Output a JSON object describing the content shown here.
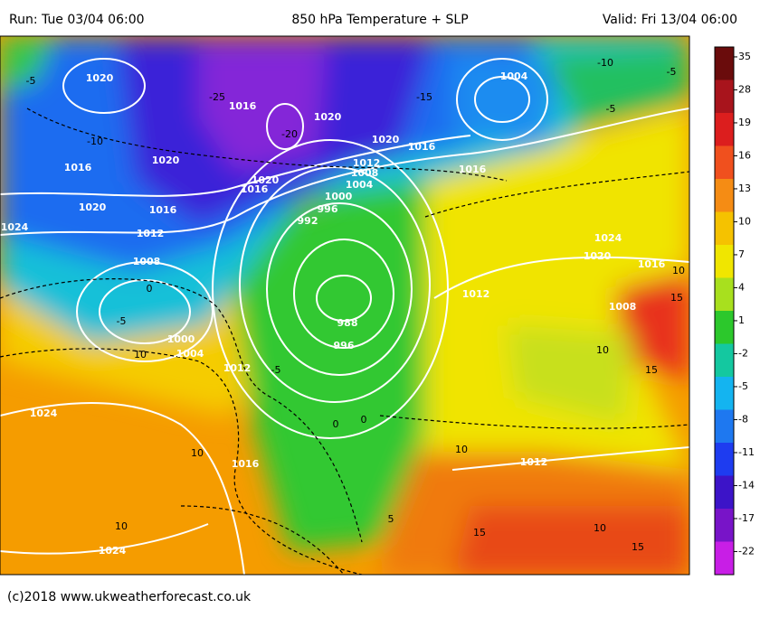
{
  "header": {
    "run": "Run: Tue 03/04 06:00",
    "title": "850 hPa Temperature + SLP",
    "valid": "Valid: Fri 13/04 06:00"
  },
  "footer": "(c)2018  www.ukweatherforecast.co.uk",
  "colorbar": {
    "labels": [
      35,
      28,
      19,
      16,
      13,
      10,
      7,
      4,
      1,
      -2,
      -5,
      -8,
      -11,
      -14,
      -17,
      -22
    ],
    "colors": [
      "#6a0c0c",
      "#a8141c",
      "#dc1e1e",
      "#f0501e",
      "#f58c14",
      "#f5c200",
      "#f0e600",
      "#a8e01e",
      "#2cc82c",
      "#14c8a0",
      "#14b4f0",
      "#1e78f0",
      "#1e3cf0",
      "#3c14c8",
      "#7814c8",
      "#c81ee6"
    ]
  },
  "isobar_labels": [
    "1020",
    "1016",
    "1020",
    "1020",
    "1016",
    "1012",
    "1008",
    "1004",
    "1000",
    "996",
    "992",
    "1016",
    "1020",
    "1016",
    "1012",
    "1020",
    "1024",
    "1008",
    "1000",
    "1004",
    "1012",
    "1016",
    "1004",
    "1024",
    "1020",
    "1016",
    "1008",
    "1012",
    "988",
    "996",
    "1024",
    "1016",
    "1012",
    "1024",
    "1020",
    "1016"
  ],
  "temperature_labels": [
    "-5",
    "-10",
    "-25",
    "-20",
    "-15",
    "-10",
    "-5",
    "-5",
    "0",
    "-5",
    "10",
    "-5",
    "0",
    "0",
    "10",
    "10",
    "10",
    "15",
    "10",
    "15",
    "15",
    "10",
    "5",
    "15",
    "10"
  ]
}
